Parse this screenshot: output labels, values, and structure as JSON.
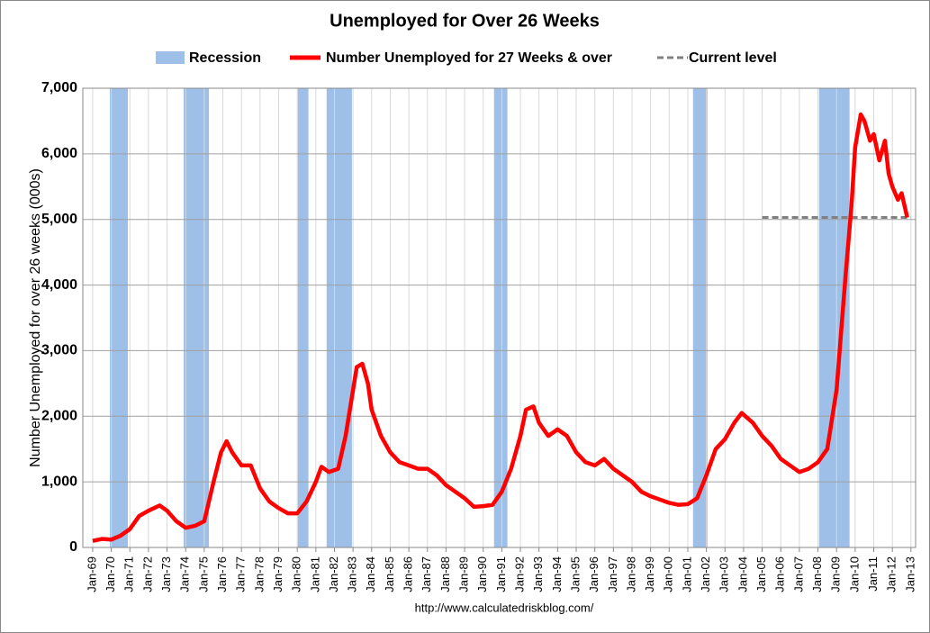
{
  "chart_data": {
    "type": "line",
    "title": "Unemployed for Over 26 Weeks",
    "y_label": "Number Unemployed for over 26 weeks (000s)",
    "source": "http://www.calculatedriskblog.com/",
    "xlim": [
      1968.47,
      2013.25
    ],
    "ylim": [
      0,
      7000
    ],
    "yticks": [
      0,
      {
        "value": 1000,
        "label": "1,000"
      },
      {
        "value": 2000,
        "label": "2,000"
      },
      {
        "value": 3000,
        "label": "3,000"
      },
      {
        "value": 4000,
        "label": "4,000"
      },
      {
        "value": 5000,
        "label": "5,000"
      },
      {
        "value": 6000,
        "label": "6,000"
      },
      {
        "value": 7000,
        "label": "7,000"
      }
    ],
    "xticks": [
      {
        "value": 1969,
        "label": "Jan-69"
      },
      {
        "value": 1970,
        "label": "Jan-70"
      },
      {
        "value": 1971,
        "label": "Jan-71"
      },
      {
        "value": 1972,
        "label": "Jan-72"
      },
      {
        "value": 1973,
        "label": "Jan-73"
      },
      {
        "value": 1974,
        "label": "Jan-74"
      },
      {
        "value": 1975,
        "label": "Jan-75"
      },
      {
        "value": 1976,
        "label": "Jan-76"
      },
      {
        "value": 1977,
        "label": "Jan-77"
      },
      {
        "value": 1978,
        "label": "Jan-78"
      },
      {
        "value": 1979,
        "label": "Jan-79"
      },
      {
        "value": 1980,
        "label": "Jan-80"
      },
      {
        "value": 1981,
        "label": "Jan-81"
      },
      {
        "value": 1982,
        "label": "Jan-82"
      },
      {
        "value": 1983,
        "label": "Jan-83"
      },
      {
        "value": 1984,
        "label": "Jan-84"
      },
      {
        "value": 1985,
        "label": "Jan-85"
      },
      {
        "value": 1986,
        "label": "Jan-86"
      },
      {
        "value": 1987,
        "label": "Jan-87"
      },
      {
        "value": 1988,
        "label": "Jan-88"
      },
      {
        "value": 1989,
        "label": "Jan-89"
      },
      {
        "value": 1990,
        "label": "Jan-90"
      },
      {
        "value": 1991,
        "label": "Jan-91"
      },
      {
        "value": 1992,
        "label": "Jan-92"
      },
      {
        "value": 1993,
        "label": "Jan-93"
      },
      {
        "value": 1994,
        "label": "Jan-94"
      },
      {
        "value": 1995,
        "label": "Jan-95"
      },
      {
        "value": 1996,
        "label": "Jan-96"
      },
      {
        "value": 1997,
        "label": "Jan-97"
      },
      {
        "value": 1998,
        "label": "Jan-98"
      },
      {
        "value": 1999,
        "label": "Jan-99"
      },
      {
        "value": 2000,
        "label": "Jan-00"
      },
      {
        "value": 2001,
        "label": "Jan-01"
      },
      {
        "value": 2002,
        "label": "Jan-02"
      },
      {
        "value": 2003,
        "label": "Jan-03"
      },
      {
        "value": 2004,
        "label": "Jan-04"
      },
      {
        "value": 2005,
        "label": "Jan-05"
      },
      {
        "value": 2006,
        "label": "Jan-06"
      },
      {
        "value": 2007,
        "label": "Jan-07"
      },
      {
        "value": 2008,
        "label": "Jan-08"
      },
      {
        "value": 2009,
        "label": "Jan-09"
      },
      {
        "value": 2010,
        "label": "Jan-10"
      },
      {
        "value": 2011,
        "label": "Jan-11"
      },
      {
        "value": 2012,
        "label": "Jan-12"
      },
      {
        "value": 2013,
        "label": "Jan-13"
      }
    ],
    "grid": true,
    "recessions": {
      "name": "Recession",
      "color": "#9dbfe8",
      "periods": [
        [
          1969.92,
          1970.89
        ],
        [
          1973.89,
          1975.25
        ],
        [
          1980.03,
          1980.6
        ],
        [
          1981.58,
          1982.94
        ],
        [
          1990.58,
          1991.3
        ],
        [
          2001.28,
          2002.06
        ],
        [
          2008.06,
          2009.7
        ]
      ]
    },
    "series": [
      {
        "name": "Number Unemployed for 27 Weeks & over",
        "color": "#ff0000",
        "dash": false,
        "x": [
          1969,
          1969.5,
          1970,
          1970.5,
          1971,
          1971.5,
          1972,
          1972.6,
          1973,
          1973.5,
          1974,
          1974.5,
          1975,
          1975.5,
          1975.9,
          1976.2,
          1976.5,
          1977,
          1977.5,
          1978,
          1978.5,
          1979,
          1979.5,
          1980,
          1980.5,
          1981,
          1981.3,
          1981.7,
          1982.2,
          1982.6,
          1983,
          1983.2,
          1983.5,
          1983.8,
          1984,
          1984.5,
          1985,
          1985.5,
          1986,
          1986.5,
          1987,
          1987.5,
          1988,
          1988.5,
          1989,
          1989.5,
          1990,
          1990.5,
          1991,
          1991.5,
          1992,
          1992.3,
          1992.7,
          1993,
          1993.5,
          1994,
          1994.5,
          1995,
          1995.5,
          1996,
          1996.5,
          1997,
          1997.5,
          1998,
          1998.5,
          1999,
          1999.5,
          2000,
          2000.5,
          2001,
          2001.5,
          2002,
          2002.5,
          2003,
          2003.5,
          2003.9,
          2004.5,
          2005,
          2005.5,
          2006,
          2006.5,
          2007,
          2007.5,
          2008,
          2008.5,
          2009,
          2009.5,
          2009.8,
          2010,
          2010.3,
          2010.5,
          2010.8,
          2011,
          2011.3,
          2011.6,
          2011.8,
          2012,
          2012.3,
          2012.5,
          2012.8
        ],
        "values": [
          100,
          130,
          120,
          180,
          280,
          480,
          560,
          640,
          560,
          400,
          300,
          330,
          400,
          1000,
          1450,
          1620,
          1450,
          1250,
          1250,
          900,
          700,
          600,
          520,
          520,
          700,
          1000,
          1230,
          1150,
          1200,
          1700,
          2400,
          2750,
          2800,
          2500,
          2100,
          1700,
          1450,
          1300,
          1250,
          1200,
          1200,
          1100,
          950,
          850,
          750,
          620,
          630,
          650,
          850,
          1200,
          1700,
          2100,
          2150,
          1900,
          1700,
          1800,
          1700,
          1450,
          1300,
          1250,
          1350,
          1200,
          1100,
          1000,
          850,
          780,
          730,
          680,
          650,
          660,
          750,
          1100,
          1500,
          1650,
          1900,
          2050,
          1900,
          1700,
          1550,
          1350,
          1250,
          1150,
          1200,
          1300,
          1500,
          2400,
          4200,
          5200,
          6100,
          6600,
          6500,
          6200,
          6300,
          5900,
          6200,
          5700,
          5500,
          5300,
          5400,
          5030
        ]
      },
      {
        "name": "Current level",
        "color": "#808080",
        "dash": true,
        "x": [
          2005,
          2013
        ],
        "values": [
          5030,
          5030
        ]
      }
    ]
  }
}
